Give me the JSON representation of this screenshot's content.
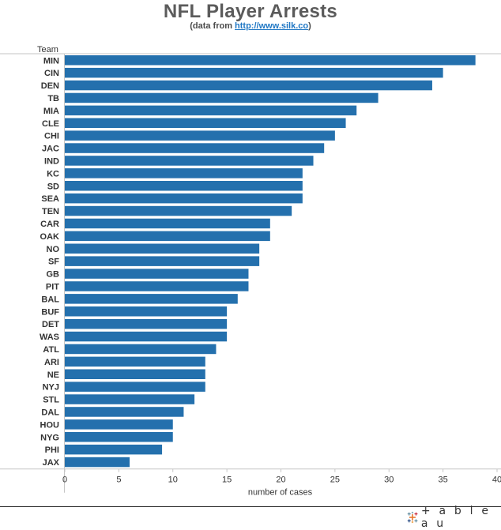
{
  "title": "NFL Player Arrests",
  "subtitle": {
    "prefix": "(data from ",
    "link": "http://www.silk.co",
    "suffix": ")"
  },
  "branding": "+ a b l e a u",
  "colors": {
    "bar": "#2470ad",
    "axis": "#c6c6c6"
  },
  "chart_data": {
    "type": "bar",
    "orientation": "horizontal",
    "row_header": "Team",
    "xlabel": "number of cases",
    "xlim": [
      0,
      40
    ],
    "xticks": [
      0,
      5,
      10,
      15,
      20,
      25,
      30,
      35,
      40
    ],
    "grid": false,
    "categories": [
      "MIN",
      "CIN",
      "DEN",
      "TB",
      "MIA",
      "CLE",
      "CHI",
      "JAC",
      "IND",
      "KC",
      "SD",
      "SEA",
      "TEN",
      "CAR",
      "OAK",
      "NO",
      "SF",
      "GB",
      "PIT",
      "BAL",
      "BUF",
      "DET",
      "WAS",
      "ATL",
      "ARI",
      "NE",
      "NYJ",
      "STL",
      "DAL",
      "HOU",
      "NYG",
      "PHI",
      "JAX"
    ],
    "values": [
      38,
      35,
      34,
      29,
      27,
      26,
      25,
      24,
      23,
      22,
      22,
      22,
      21,
      19,
      19,
      18,
      18,
      17,
      17,
      16,
      15,
      15,
      15,
      14,
      13,
      13,
      13,
      12,
      11,
      10,
      10,
      9,
      6
    ]
  }
}
